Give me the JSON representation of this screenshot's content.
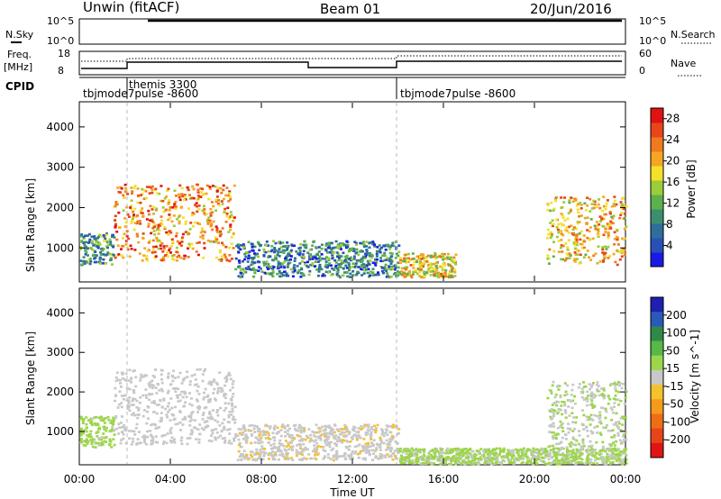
{
  "header": {
    "station": "Unwin (fitACF)",
    "beam": "Beam 01",
    "date": "20/Jun/2016"
  },
  "colors": {
    "power_scale": [
      "#1a1ae6",
      "#2a50b8",
      "#2d6e9a",
      "#3b8f6e",
      "#5db04e",
      "#9ccc3a",
      "#f5e02a",
      "#f6a623",
      "#f07a1e",
      "#e8461a",
      "#e01212"
    ],
    "velocity_scale": [
      "#2020b0",
      "#2a5ab8",
      "#2f8a4a",
      "#58b848",
      "#9cd64a",
      "#c8c8c8",
      "#f6c22a",
      "#f59a1c",
      "#ee6e16",
      "#e8441a",
      "#e01414"
    ],
    "echo_grey": "#c0c0c0",
    "search_marker": "#000000"
  },
  "top_panels": {
    "nsky": {
      "label": "N.Sky",
      "ticks": [
        "10^5",
        "10^0"
      ],
      "right_ticks": [
        "10^5",
        "10^0"
      ],
      "right_label": "N.Search"
    },
    "freq": {
      "label": "Freq.",
      "unit": "[MHz]",
      "ticks": [
        "18",
        "8"
      ],
      "right_ticks": [
        "60",
        "0"
      ],
      "right_label": "Nave"
    },
    "cpid": {
      "label": "CPID",
      "segments": [
        {
          "text": "tbjmode7pulse -8600",
          "start_hour": 0
        },
        {
          "text": "themis 3300",
          "start_hour": 2
        },
        {
          "text": "tbjmode7pulse -8600",
          "start_hour": 14
        }
      ]
    }
  },
  "chart_data": [
    {
      "type": "heatmap",
      "title": "Power",
      "xlabel": "Time UT",
      "ylabel": "Slant Range [km]",
      "x_range_hours": [
        0,
        24
      ],
      "ylim": [
        180,
        4600
      ],
      "yticks": [
        1000,
        2000,
        3000,
        4000
      ],
      "colorbar": {
        "label": "Power [dB]",
        "ticks": [
          4,
          8,
          12,
          16,
          20,
          24,
          28
        ],
        "range": [
          0,
          30
        ]
      },
      "echo_regions": [
        {
          "hours": [
            0.0,
            1.5
          ],
          "range_km": [
            600,
            1400
          ],
          "level_db": 10
        },
        {
          "hours": [
            1.5,
            6.8
          ],
          "range_km": [
            700,
            2600
          ],
          "level_db": 22
        },
        {
          "hours": [
            6.8,
            14.0
          ],
          "range_km": [
            300,
            1200
          ],
          "level_db": 8
        },
        {
          "hours": [
            14.0,
            16.5
          ],
          "range_km": [
            300,
            900
          ],
          "level_db": 18
        },
        {
          "hours": [
            20.5,
            24.0
          ],
          "range_km": [
            600,
            2300
          ],
          "level_db": 20
        }
      ]
    },
    {
      "type": "heatmap",
      "title": "Velocity",
      "xlabel": "Time UT",
      "ylabel": "Slant Range [km]",
      "x_range_hours": [
        0,
        24
      ],
      "ylim": [
        180,
        4600
      ],
      "yticks": [
        1000,
        2000,
        3000,
        4000
      ],
      "colorbar": {
        "label": "Velocity [m s^-1]",
        "ticks": [
          200,
          100,
          50,
          15,
          -15,
          -50,
          -100,
          -200
        ],
        "range": [
          -250,
          250
        ]
      },
      "echo_regions": [
        {
          "hours": [
            0.0,
            1.5
          ],
          "range_km": [
            600,
            1400
          ],
          "velocity": 40
        },
        {
          "hours": [
            1.5,
            6.8
          ],
          "range_km": [
            700,
            2600
          ],
          "velocity": 0
        },
        {
          "hours": [
            6.8,
            14.0
          ],
          "range_km": [
            300,
            1200
          ],
          "velocity": -10
        },
        {
          "hours": [
            14.0,
            24.0
          ],
          "range_km": [
            200,
            600
          ],
          "velocity": 30
        },
        {
          "hours": [
            20.5,
            24.0
          ],
          "range_km": [
            600,
            2300
          ],
          "velocity": 20
        }
      ]
    }
  ],
  "x_axis": {
    "ticks": [
      "00:00",
      "04:00",
      "08:00",
      "12:00",
      "16:00",
      "20:00",
      "00:00"
    ],
    "label": "Time UT"
  }
}
